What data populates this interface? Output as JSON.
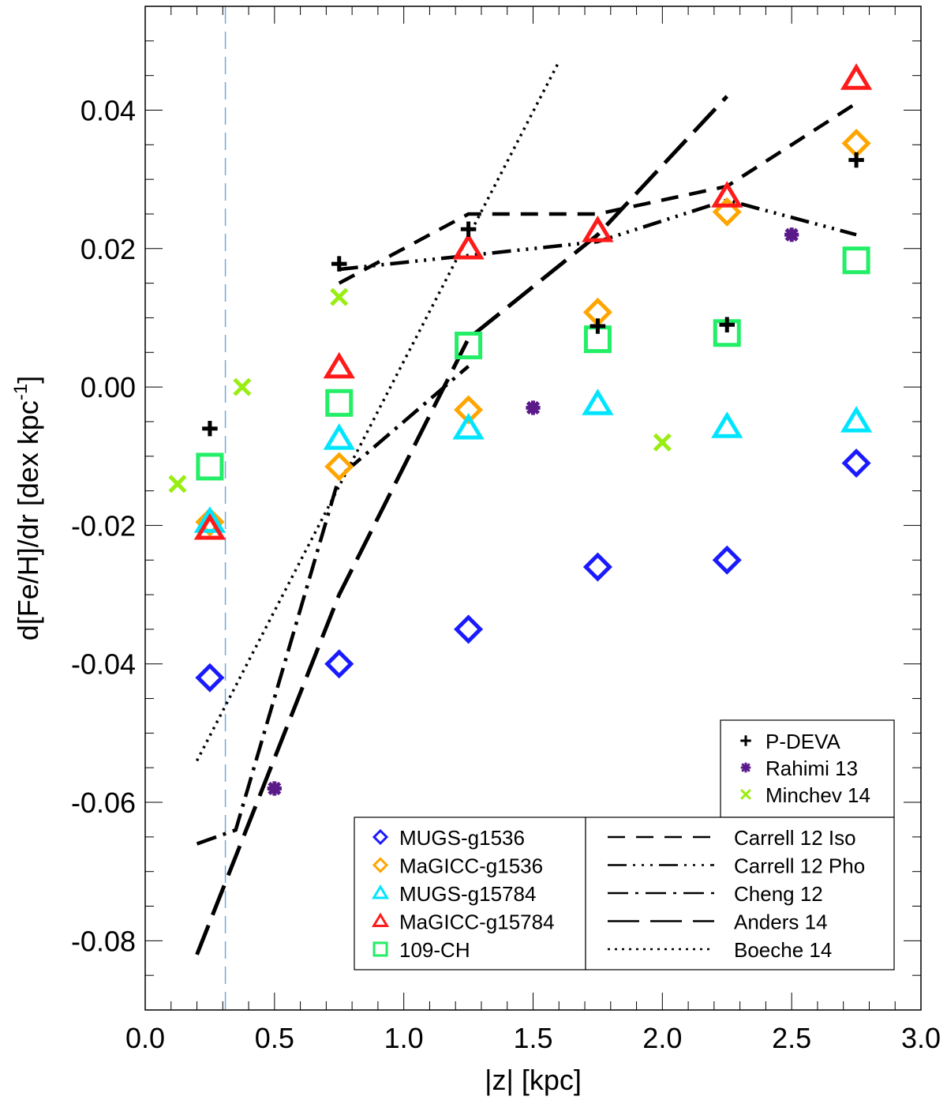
{
  "chart_data": {
    "type": "scatter",
    "title": "",
    "xlabel": "|z| [kpc]",
    "ylabel_main": "d[Fe/H]/dr [dex kpc",
    "ylabel_sup": "-1",
    "ylabel_close": "]",
    "xlim": [
      0.0,
      3.0
    ],
    "ylim": [
      -0.09,
      0.055
    ],
    "x_ticks": [
      0.0,
      0.5,
      1.0,
      1.5,
      2.0,
      2.5,
      3.0
    ],
    "x_tick_labels": [
      "0.0",
      "0.5",
      "1.0",
      "1.5",
      "2.0",
      "2.5",
      "3.0"
    ],
    "y_ticks": [
      -0.08,
      -0.06,
      -0.04,
      -0.02,
      0.0,
      0.02,
      0.04
    ],
    "y_tick_labels": [
      "-0.08",
      "-0.06",
      "-0.04",
      "-0.02",
      "0.00",
      "0.02",
      "0.04"
    ],
    "vertical_reference_line": {
      "x": 0.31,
      "color": "#6fa8dc",
      "style": "long-dash"
    },
    "marker_series": [
      {
        "name": "MUGS-g1536",
        "marker": "diamond",
        "color": "#1a1aff",
        "legend": "simulations",
        "x": [
          0.25,
          0.75,
          1.25,
          1.75,
          2.25,
          2.75
        ],
        "y": [
          -0.042,
          -0.04,
          -0.035,
          -0.026,
          -0.025,
          -0.011
        ]
      },
      {
        "name": "MaGICC-g1536",
        "marker": "diamond",
        "color": "#ffa500",
        "legend": "simulations",
        "x": [
          0.25,
          0.75,
          1.25,
          1.75,
          2.25,
          2.75
        ],
        "y": [
          -0.0195,
          -0.0115,
          -0.0033,
          0.0108,
          0.0253,
          0.0352
        ]
      },
      {
        "name": "MUGS-g15784",
        "marker": "triangle",
        "color": "#00e5ff",
        "legend": "simulations",
        "x": [
          0.25,
          0.75,
          1.25,
          1.75,
          2.25,
          2.75
        ],
        "y": [
          -0.0195,
          -0.0075,
          -0.006,
          -0.0025,
          -0.0058,
          -0.005
        ]
      },
      {
        "name": "MaGICC-g15784",
        "marker": "triangle",
        "color": "#ff1a1a",
        "legend": "simulations",
        "x": [
          0.25,
          0.75,
          1.25,
          1.75,
          2.25,
          2.75
        ],
        "y": [
          -0.0205,
          0.0028,
          0.02,
          0.0225,
          0.0275,
          0.0445
        ]
      },
      {
        "name": "109-CH",
        "marker": "square",
        "color": "#22ee66",
        "legend": "simulations",
        "x": [
          0.25,
          0.75,
          1.25,
          1.75,
          2.25,
          2.75
        ],
        "y": [
          -0.0115,
          -0.0023,
          0.006,
          0.0069,
          0.0078,
          0.0183
        ]
      },
      {
        "name": "P-DEVA",
        "marker": "plus",
        "color": "#000000",
        "legend": "observations",
        "x": [
          0.25,
          0.75,
          1.25,
          1.75,
          2.25,
          2.75
        ],
        "y": [
          -0.006,
          0.0178,
          0.0228,
          0.0088,
          0.009,
          0.0328
        ]
      },
      {
        "name": "Rahimi 13",
        "marker": "asterisk",
        "color": "#5b1a8a",
        "legend": "observations",
        "x": [
          0.5,
          1.5,
          2.5
        ],
        "y": [
          -0.058,
          -0.003,
          0.022
        ]
      },
      {
        "name": "Minchev 14",
        "marker": "cross",
        "color": "#99ee11",
        "legend": "observations",
        "x": [
          0.125,
          0.375,
          0.75,
          2.0
        ],
        "y": [
          -0.014,
          0.0,
          0.013,
          -0.008
        ]
      }
    ],
    "line_series": [
      {
        "name": "Carrell 12 Iso",
        "style": "dash",
        "x": [
          0.75,
          1.25,
          1.75,
          2.25,
          2.75
        ],
        "y": [
          0.015,
          0.025,
          0.025,
          0.029,
          0.041
        ]
      },
      {
        "name": "Carrell 12 Pho",
        "style": "dash-dot-dot-dot",
        "x": [
          0.75,
          1.25,
          1.75,
          2.25,
          2.75
        ],
        "y": [
          0.017,
          0.019,
          0.021,
          0.027,
          0.022
        ]
      },
      {
        "name": "Cheng 12",
        "style": "dash-dot",
        "x": [
          0.2,
          0.35,
          0.75,
          1.25
        ],
        "y": [
          -0.066,
          -0.064,
          -0.013,
          0.003
        ]
      },
      {
        "name": "Anders 14",
        "style": "long-dash",
        "x": [
          0.2,
          0.75,
          1.25,
          1.75,
          2.25
        ],
        "y": [
          -0.082,
          -0.03,
          0.007,
          0.022,
          0.042
        ]
      },
      {
        "name": "Boeche 14",
        "style": "dot",
        "x": [
          0.2,
          1.6
        ],
        "y": [
          -0.054,
          0.047
        ]
      }
    ],
    "legends": {
      "observations": {
        "placement": "right, above bottom legend",
        "entries": [
          "P-DEVA",
          "Rahimi 13",
          "Minchev 14"
        ]
      },
      "simulations": {
        "placement": "bottom-center-left",
        "entries": [
          "MUGS-g1536",
          "MaGICC-g1536",
          "MUGS-g15784",
          "MaGICC-g15784",
          "109-CH"
        ]
      },
      "literature": {
        "placement": "bottom-right",
        "entries": [
          "Carrell 12 Iso",
          "Carrell 12 Pho",
          "Cheng 12",
          "Anders 14",
          "Boeche 14"
        ]
      }
    }
  }
}
